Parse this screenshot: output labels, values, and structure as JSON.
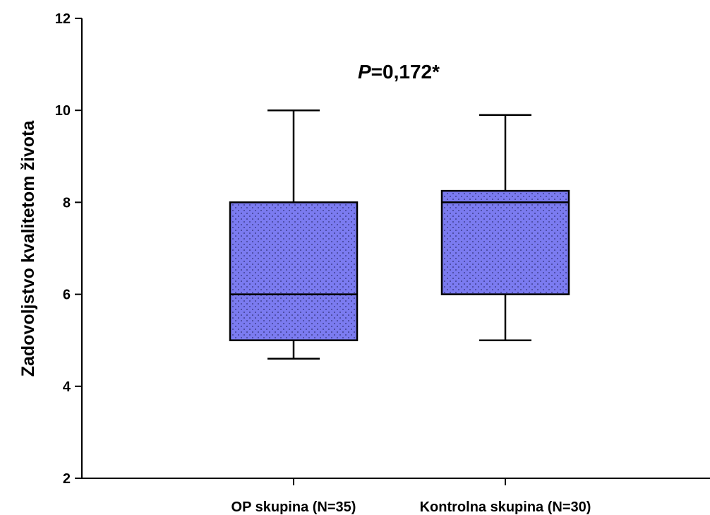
{
  "chart_data": {
    "type": "box",
    "ylabel": "Zadovoljstvo kvalitetom života",
    "ylim": [
      2,
      12
    ],
    "yticks": [
      2,
      4,
      6,
      8,
      10,
      12
    ],
    "categories": [
      "OP skupina (N=35)",
      "Kontrolna skupina (N=30)"
    ],
    "boxes": [
      {
        "name": "OP skupina (N=35)",
        "min": 4.6,
        "q1": 5,
        "median": 6,
        "q3": 8,
        "max": 10
      },
      {
        "name": "Kontrolna skupina (N=30)",
        "min": 5,
        "q1": 6,
        "median": 8,
        "q3": 8.25,
        "max": 9.9
      }
    ],
    "annotation": {
      "italic": "P",
      "rest": "=0,172*"
    },
    "grid": false,
    "box_color": "#7b7bf0"
  }
}
